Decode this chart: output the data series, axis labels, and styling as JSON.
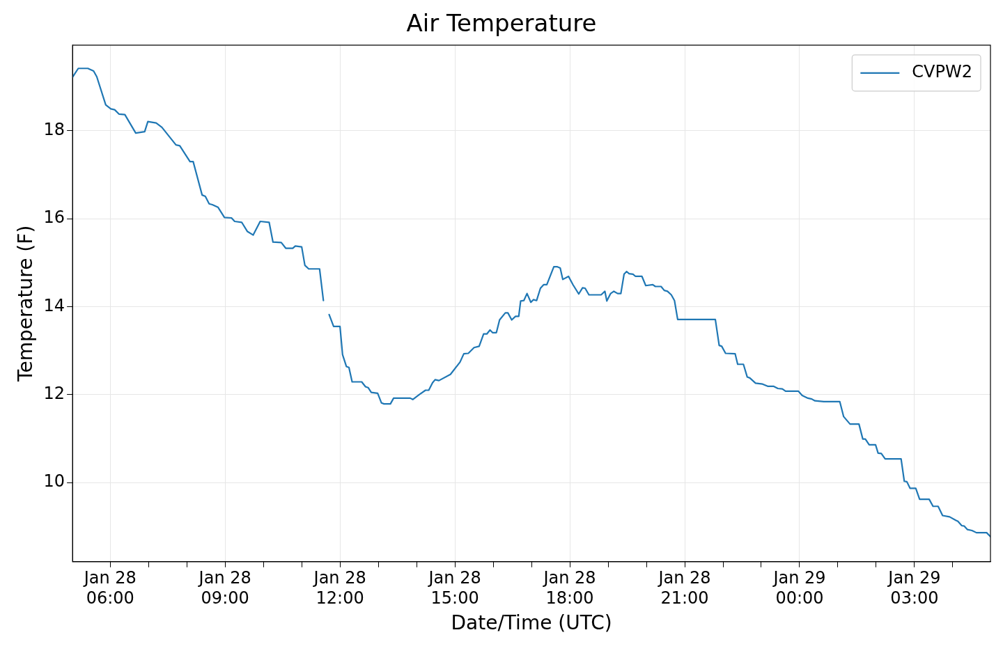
{
  "chart_data": {
    "type": "line",
    "title": "Air Temperature",
    "xlabel": "Date/Time (UTC)",
    "ylabel": "Temperature (F)",
    "x": [
      "--01-28T05:01",
      "--01-28T05:10",
      "--01-28T05:25",
      "--01-28T05:34",
      "--01-28T05:39",
      "--01-28T05:53",
      "--01-28T06:01",
      "--01-28T06:07",
      "--01-28T06:14",
      "--01-28T06:23",
      "--01-28T06:40",
      "--01-28T06:54",
      "--01-28T06:59",
      "--01-28T07:12",
      "--01-28T07:21",
      "--01-28T07:43",
      "--01-28T07:49",
      "--01-28T08:05",
      "--01-28T08:10",
      "--01-28T08:24",
      "--01-28T08:29",
      "--01-28T08:35",
      "--01-28T08:40",
      "--01-28T08:49",
      "--01-28T08:59",
      "--01-28T09:10",
      "--01-28T09:15",
      "--01-28T09:26",
      "--01-28T09:35",
      "--01-28T09:44",
      "--01-28T09:55",
      "--01-28T10:09",
      "--01-28T10:15",
      "--01-28T10:28",
      "--01-28T10:35",
      "--01-28T10:46",
      "--01-28T10:50",
      "--01-28T11:00",
      "--01-28T11:05",
      "--01-28T11:11",
      "--01-28T11:28",
      "--01-28T11:34",
      "--01-28T11:38",
      "--01-28T11:43",
      "--01-28T11:50",
      "--01-28T12:00",
      "--01-28T12:04",
      "--01-28T12:10",
      "--01-28T12:14",
      "--01-28T12:19",
      "--01-28T12:34",
      "--01-28T12:40",
      "--01-28T12:44",
      "--01-28T12:49",
      "--01-28T12:59",
      "--01-28T13:05",
      "--01-28T13:09",
      "--01-28T13:19",
      "--01-28T13:24",
      "--01-28T13:50",
      "--01-28T13:54",
      "--01-28T14:04",
      "--01-28T14:14",
      "--01-28T14:19",
      "--01-28T14:25",
      "--01-28T14:29",
      "--01-28T14:35",
      "--01-28T14:53",
      "--01-28T15:08",
      "--01-28T15:14",
      "--01-28T15:21",
      "--01-28T15:30",
      "--01-28T15:38",
      "--01-28T15:45",
      "--01-28T15:50",
      "--01-28T15:55",
      "--01-28T15:59",
      "--01-28T16:05",
      "--01-28T16:10",
      "--01-28T16:19",
      "--01-28T16:23",
      "--01-28T16:29",
      "--01-28T16:35",
      "--01-28T16:40",
      "--01-28T16:43",
      "--01-28T16:48",
      "--01-28T16:53",
      "--01-28T16:59",
      "--01-28T17:03",
      "--01-28T17:08",
      "--01-28T17:14",
      "--01-28T17:19",
      "--01-28T17:24",
      "--01-28T17:35",
      "--01-28T17:40",
      "--01-28T17:45",
      "--01-28T17:49",
      "--01-28T17:58",
      "--01-28T18:05",
      "--01-28T18:14",
      "--01-28T18:20",
      "--01-28T18:24",
      "--01-28T18:30",
      "--01-28T18:49",
      "--01-28T18:55",
      "--01-28T18:58",
      "--01-28T19:04",
      "--01-28T19:09",
      "--01-28T19:15",
      "--01-28T19:20",
      "--01-28T19:25",
      "--01-28T19:29",
      "--01-28T19:33",
      "--01-28T19:39",
      "--01-28T19:43",
      "--01-28T19:53",
      "--01-28T19:59",
      "--01-28T20:10",
      "--01-28T20:14",
      "--01-28T20:23",
      "--01-28T20:28",
      "--01-28T20:33",
      "--01-28T20:39",
      "--01-28T20:44",
      "--01-28T20:49",
      "--01-28T21:48",
      "--01-28T21:54",
      "--01-28T21:58",
      "--01-28T22:04",
      "--01-28T22:19",
      "--01-28T22:23",
      "--01-28T22:32",
      "--01-28T22:38",
      "--01-28T22:42",
      "--01-28T22:51",
      "--01-28T23:02",
      "--01-28T23:10",
      "--01-28T23:19",
      "--01-28T23:26",
      "--01-28T23:33",
      "--01-28T23:38",
      "--01-28T23:58",
      "--01-29T00:04",
      "--01-29T00:13",
      "--01-29T00:19",
      "--01-29T00:24",
      "--01-29T00:38",
      "--01-29T01:03",
      "--01-29T01:09",
      "--01-29T01:19",
      "--01-29T01:33",
      "--01-29T01:39",
      "--01-29T01:43",
      "--01-29T01:49",
      "--01-29T01:59",
      "--01-29T02:03",
      "--01-29T02:08",
      "--01-29T02:14",
      "--01-29T02:39",
      "--01-29T02:44",
      "--01-29T02:48",
      "--01-29T02:53",
      "--01-29T03:02",
      "--01-29T03:08",
      "--01-29T03:23",
      "--01-29T03:29",
      "--01-29T03:37",
      "--01-29T03:44",
      "--01-29T03:55",
      "--01-29T04:05",
      "--01-29T04:08",
      "--01-29T04:14",
      "--01-29T04:18",
      "--01-29T04:23",
      "--01-29T04:30",
      "--01-29T04:37",
      "--01-29T04:53",
      "--01-29T04:59"
    ],
    "series": [
      {
        "name": "CVPW2",
        "color": "#1f77b4",
        "values": [
          19.22,
          19.42,
          19.42,
          19.36,
          19.23,
          18.59,
          18.5,
          18.48,
          18.38,
          18.37,
          17.95,
          17.98,
          18.21,
          18.18,
          18.08,
          17.68,
          17.66,
          17.3,
          17.3,
          16.54,
          16.51,
          16.34,
          16.32,
          16.26,
          16.03,
          16.02,
          15.94,
          15.92,
          15.71,
          15.63,
          15.94,
          15.92,
          15.47,
          15.46,
          15.33,
          15.33,
          15.38,
          15.36,
          14.94,
          14.86,
          14.86,
          14.14,
          null,
          13.82,
          13.55,
          13.55,
          12.91,
          12.64,
          12.62,
          12.29,
          12.29,
          12.18,
          12.16,
          12.05,
          12.03,
          11.81,
          11.79,
          11.79,
          11.92,
          11.92,
          11.89,
          12.0,
          12.1,
          12.1,
          12.27,
          12.34,
          12.32,
          12.46,
          12.74,
          12.93,
          12.94,
          13.07,
          13.1,
          13.38,
          13.38,
          13.47,
          13.41,
          13.41,
          13.7,
          13.86,
          13.86,
          13.7,
          13.78,
          13.78,
          14.13,
          14.14,
          14.3,
          14.1,
          14.16,
          14.14,
          14.42,
          14.5,
          14.5,
          14.91,
          14.91,
          14.88,
          14.62,
          14.69,
          14.5,
          14.29,
          14.43,
          14.42,
          14.27,
          14.27,
          14.35,
          14.13,
          14.3,
          14.35,
          14.3,
          14.3,
          14.74,
          14.8,
          14.75,
          14.74,
          14.69,
          14.69,
          14.48,
          14.5,
          14.46,
          14.46,
          14.37,
          14.35,
          14.27,
          14.14,
          13.71,
          13.71,
          13.12,
          13.1,
          12.94,
          12.93,
          12.69,
          12.69,
          12.4,
          12.38,
          12.26,
          12.24,
          12.19,
          12.19,
          12.14,
          12.13,
          12.08,
          12.08,
          11.98,
          11.92,
          11.9,
          11.86,
          11.84,
          11.84,
          11.5,
          11.33,
          11.33,
          10.99,
          10.99,
          10.86,
          10.86,
          10.67,
          10.66,
          10.54,
          10.54,
          10.03,
          10.02,
          9.87,
          9.87,
          9.62,
          9.62,
          9.46,
          9.46,
          9.25,
          9.22,
          9.14,
          9.12,
          9.02,
          9.01,
          8.93,
          8.91,
          8.86,
          8.86,
          8.77
        ]
      }
    ],
    "xlim": [
      "--01-28T05:01",
      "--01-29T04:59"
    ],
    "xticks": [
      {
        "value": "--01-28T06:00",
        "label": "Jan 28\n06:00"
      },
      {
        "value": "--01-28T07:00",
        "label": null
      },
      {
        "value": "--01-28T08:00",
        "label": null
      },
      {
        "value": "--01-28T09:00",
        "label": "Jan 28\n09:00"
      },
      {
        "value": "--01-28T10:00",
        "label": null
      },
      {
        "value": "--01-28T11:00",
        "label": null
      },
      {
        "value": "--01-28T12:00",
        "label": "Jan 28\n12:00"
      },
      {
        "value": "--01-28T13:00",
        "label": null
      },
      {
        "value": "--01-28T14:00",
        "label": null
      },
      {
        "value": "--01-28T15:00",
        "label": "Jan 28\n15:00"
      },
      {
        "value": "--01-28T16:00",
        "label": null
      },
      {
        "value": "--01-28T17:00",
        "label": null
      },
      {
        "value": "--01-28T18:00",
        "label": "Jan 28\n18:00"
      },
      {
        "value": "--01-28T19:00",
        "label": null
      },
      {
        "value": "--01-28T20:00",
        "label": null
      },
      {
        "value": "--01-28T21:00",
        "label": "Jan 28\n21:00"
      },
      {
        "value": "--01-28T22:00",
        "label": null
      },
      {
        "value": "--01-28T23:00",
        "label": null
      },
      {
        "value": "--01-29T00:00",
        "label": "Jan 29\n00:00"
      },
      {
        "value": "--01-29T01:00",
        "label": null
      },
      {
        "value": "--01-29T02:00",
        "label": null
      },
      {
        "value": "--01-29T03:00",
        "label": "Jan 29\n03:00"
      },
      {
        "value": "--01-29T04:00",
        "label": null
      }
    ],
    "ylim": [
      8.2,
      19.95
    ],
    "yticks": [
      10,
      12,
      14,
      16,
      18
    ],
    "grid": true,
    "legend": "top right",
    "marker": "none",
    "line_style": "solid"
  }
}
